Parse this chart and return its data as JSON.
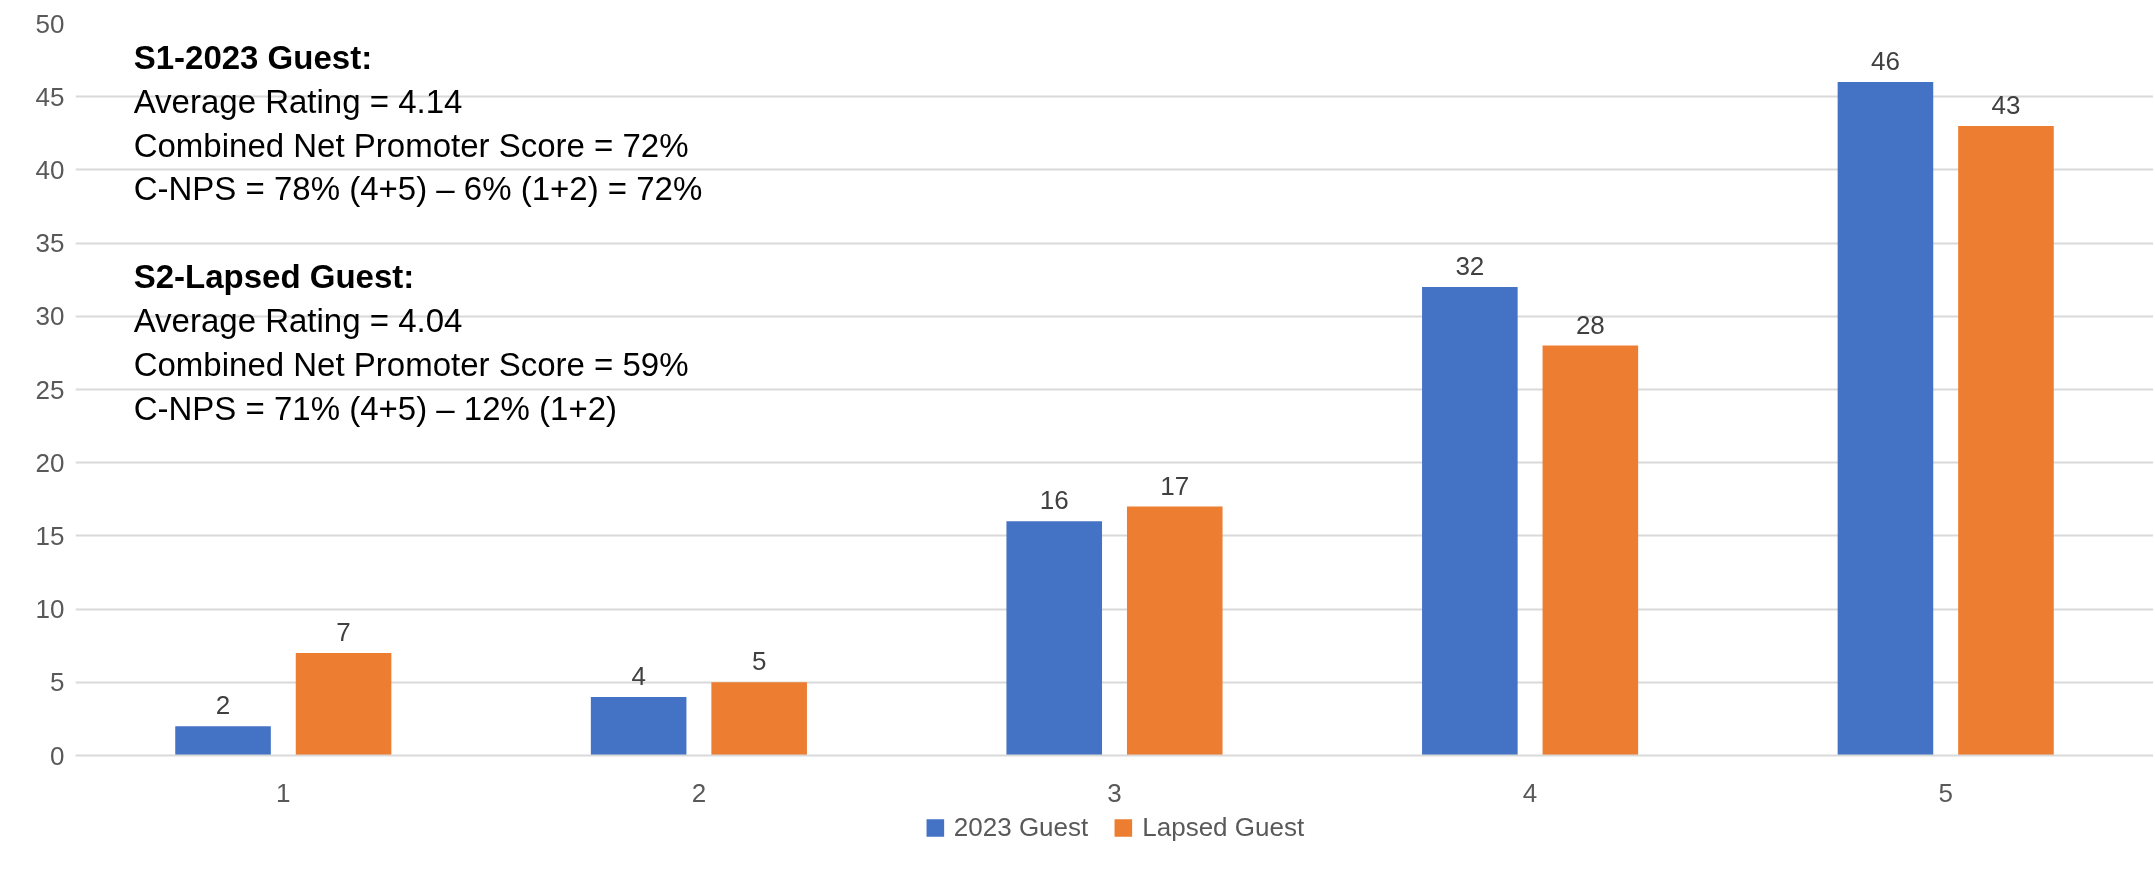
{
  "chart_data": {
    "type": "bar",
    "categories": [
      "1",
      "2",
      "3",
      "4",
      "5"
    ],
    "series": [
      {
        "name": "2023 Guest",
        "color": "#4472c4",
        "values": [
          2,
          4,
          16,
          32,
          46
        ]
      },
      {
        "name": "Lapsed Guest",
        "color": "#ed7d31",
        "values": [
          7,
          5,
          17,
          28,
          43
        ]
      }
    ],
    "ylim": [
      0,
      50
    ],
    "yticks": [
      0,
      5,
      10,
      15,
      20,
      25,
      30,
      35,
      40,
      45,
      50
    ],
    "grid": "y",
    "legend": "bottom",
    "data_labels": true,
    "annotations": [
      "S1-2023 Guest:\nAverage Rating = 4.14\nCombined Net Promoter Score = 72%\nC-NPS = 78% (4+5) – 6% (1+2) = 72%",
      "S2-Lapsed Guest:\nAverage Rating = 4.04\nCombined Net Promoter Score = 59%\nC-NPS = 71% (4+5) – 12% (1+2)"
    ]
  }
}
